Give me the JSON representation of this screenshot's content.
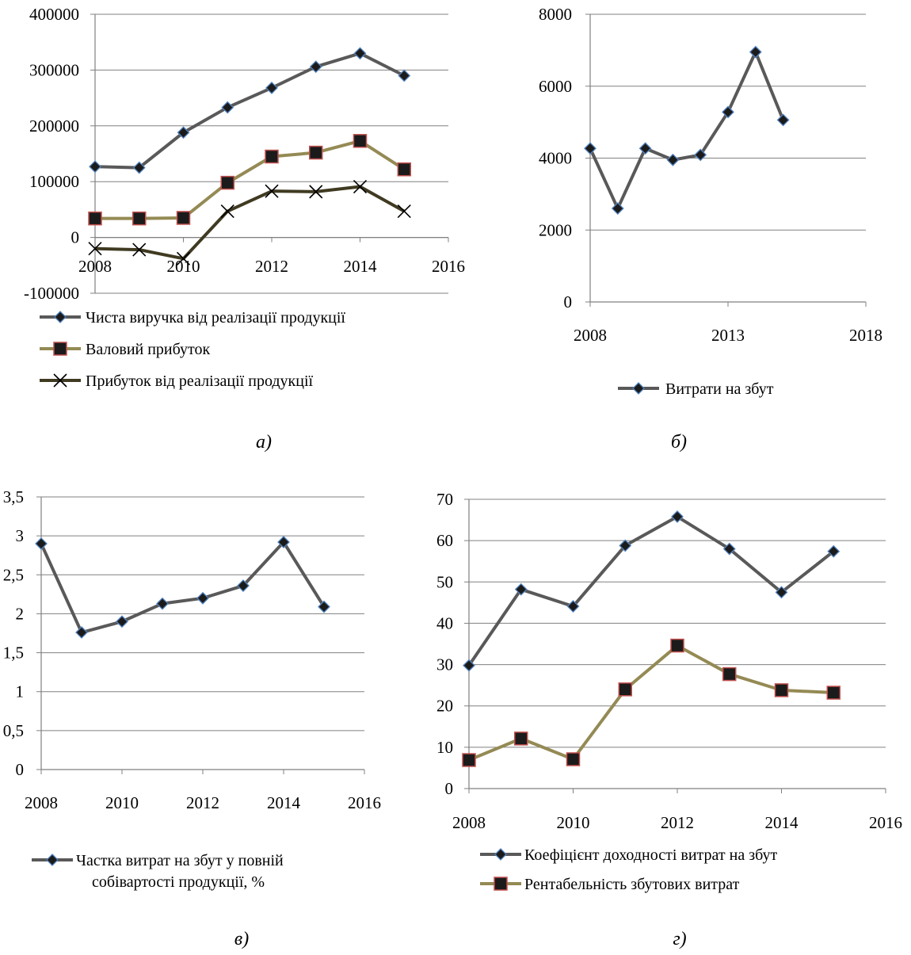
{
  "colors": {
    "grid": "#808080",
    "axis": "#808080",
    "gray": "#595959",
    "olive": "#948A54",
    "dark": "#3F3A21",
    "marker_fill": "#1b1b1b",
    "edge_blue": "#4F81BD",
    "edge_red": "#C0504D"
  },
  "chart_data": [
    {
      "id": "a",
      "type": "line",
      "caption": "а)",
      "x": [
        2008,
        2009,
        2010,
        2011,
        2012,
        2013,
        2014,
        2015
      ],
      "xlim": [
        2008,
        2016
      ],
      "xticks": [
        2008,
        2010,
        2012,
        2014,
        2016
      ],
      "ylim": [
        -100000,
        400000
      ],
      "yticks": [
        -100000,
        0,
        100000,
        200000,
        300000,
        400000
      ],
      "grid": true,
      "series": [
        {
          "name": "Чиста виручка від реалізації продукції",
          "values": [
            127000,
            125000,
            188000,
            233000,
            268000,
            306000,
            330000,
            290000
          ],
          "marker": "diamond",
          "color": "#595959",
          "edge": "#4F81BD"
        },
        {
          "name": "Валовий прибуток",
          "values": [
            34000,
            34000,
            35000,
            98000,
            145000,
            152000,
            173000,
            122000
          ],
          "marker": "square",
          "color": "#948A54",
          "edge": "#C0504D"
        },
        {
          "name": "Прибуток від реалізації продукції",
          "values": [
            -20000,
            -22000,
            -38000,
            47000,
            83000,
            82000,
            91000,
            47000
          ],
          "marker": "x",
          "color": "#3F3A21",
          "edge": "#000000"
        }
      ]
    },
    {
      "id": "b",
      "type": "line",
      "caption": "б)",
      "x": [
        2008,
        2009,
        2010,
        2011,
        2012,
        2013,
        2014,
        2015
      ],
      "xlim": [
        2008,
        2018
      ],
      "xticks": [
        2008,
        2013,
        2018
      ],
      "ylim": [
        0,
        8000
      ],
      "yticks": [
        0,
        2000,
        4000,
        6000,
        8000
      ],
      "grid": true,
      "series": [
        {
          "name": "Витрати на збут",
          "values": [
            4270,
            2600,
            4270,
            3950,
            4090,
            5280,
            6950,
            5060
          ],
          "marker": "diamond",
          "color": "#595959",
          "edge": "#4F81BD"
        }
      ]
    },
    {
      "id": "c",
      "type": "line",
      "caption": "в)",
      "x": [
        2008,
        2009,
        2010,
        2011,
        2012,
        2013,
        2014,
        2015
      ],
      "xlim": [
        2008,
        2016
      ],
      "xticks": [
        2008,
        2010,
        2012,
        2014,
        2016
      ],
      "ylim": [
        0,
        3.5
      ],
      "yticks": [
        0,
        0.5,
        1,
        1.5,
        2,
        2.5,
        3,
        3.5
      ],
      "yticklabels": [
        "0",
        "0,5",
        "1",
        "1,5",
        "2",
        "2,5",
        "3",
        "3,5"
      ],
      "grid": true,
      "series": [
        {
          "name": "Частка витрат на збут у повній собівартості продукції, %",
          "legend_lines": [
            "Частка витрат на збут у повній",
            "собівартості продукції, %"
          ],
          "values": [
            2.9,
            1.76,
            1.9,
            2.13,
            2.2,
            2.36,
            2.92,
            2.09
          ],
          "marker": "diamond",
          "color": "#595959",
          "edge": "#4F81BD"
        }
      ]
    },
    {
      "id": "d",
      "type": "line",
      "caption": "г)",
      "x": [
        2008,
        2009,
        2010,
        2011,
        2012,
        2013,
        2014,
        2015
      ],
      "xlim": [
        2008,
        2016
      ],
      "xticks": [
        2008,
        2010,
        2012,
        2014,
        2016
      ],
      "ylim": [
        0,
        70
      ],
      "yticks": [
        0,
        10,
        20,
        30,
        40,
        50,
        60,
        70
      ],
      "grid": true,
      "series": [
        {
          "name": "Коефіцієнт доходності витрат на збут",
          "values": [
            29.8,
            48.2,
            44.1,
            58.8,
            65.8,
            58.0,
            47.5,
            57.4
          ],
          "marker": "diamond",
          "color": "#595959",
          "edge": "#4F81BD"
        },
        {
          "name": "Рентабельність збутових витрат",
          "values": [
            6.9,
            12.1,
            7.1,
            24.0,
            34.6,
            27.7,
            23.8,
            23.2
          ],
          "marker": "square",
          "color": "#948A54",
          "edge": "#C0504D"
        }
      ]
    }
  ]
}
